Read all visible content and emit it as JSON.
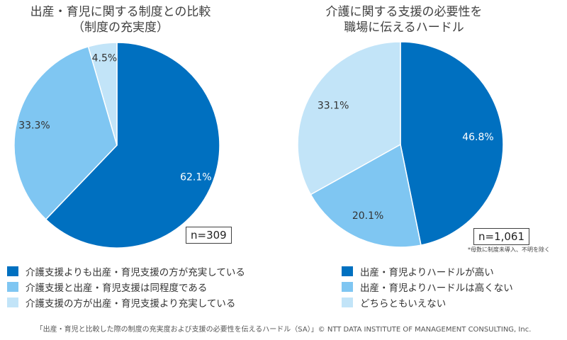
{
  "colors": {
    "dark": "#0070C0",
    "mid": "#7FC6F2",
    "light": "#C2E4F8",
    "sep": "#ffffff"
  },
  "left": {
    "title_line1": "出産・育児に関する制度との比較",
    "title_line2": "（制度の充実度）",
    "n": "n=309"
  },
  "right": {
    "title_line1": "介護に関する支援の必要性を",
    "title_line2": "職場に伝えるハードル",
    "n": "n=1,061",
    "note": "*母数に制度未導入、不明を除く"
  },
  "footer": "「出産・育児と比較した際の制度の充実度および支援の必要性を伝えるハードル（SA）」© NTT DATA INSTITUTE OF MANAGEMENT CONSULTING, Inc.",
  "chart_data": [
    {
      "type": "pie",
      "title": "出産・育児に関する制度との比較（制度の充実度）",
      "n": "n=309",
      "slices": [
        {
          "label": "介護支援よりも出産・育児支援の方が充実している",
          "value": 62.1,
          "display": "62.1%",
          "color": "#0070C0"
        },
        {
          "label": "介護支援と出産・育児支援は同程度である",
          "value": 33.3,
          "display": "33.3%",
          "color": "#7FC6F2"
        },
        {
          "label": "介護支援の方が出産・育児支援より充実している",
          "value": 4.5,
          "display": "4.5%",
          "color": "#C2E4F8"
        }
      ]
    },
    {
      "type": "pie",
      "title": "介護に関する支援の必要性を職場に伝えるハードル",
      "n": "n=1,061",
      "slices": [
        {
          "label": "出産・育児よりハードルが高い",
          "value": 46.8,
          "display": "46.8%",
          "color": "#0070C0"
        },
        {
          "label": "出産・育児よりハードルは高くない",
          "value": 20.1,
          "display": "20.1%",
          "color": "#7FC6F2"
        },
        {
          "label": "どちらともいえない",
          "value": 33.1,
          "display": "33.1%",
          "color": "#C2E4F8"
        }
      ]
    }
  ]
}
